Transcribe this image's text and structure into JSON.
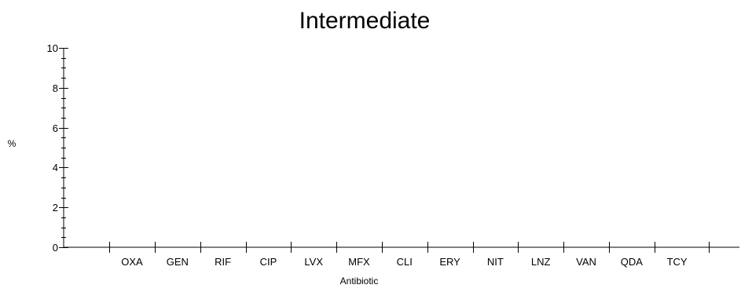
{
  "chart_data": {
    "type": "bar",
    "title": "Intermediate",
    "xlabel": "Antibiotic",
    "ylabel": "%",
    "categories": [
      "OXA",
      "GEN",
      "RIF",
      "CIP",
      "LVX",
      "MFX",
      "CLI",
      "ERY",
      "NIT",
      "LNZ",
      "VAN",
      "QDA",
      "TCY"
    ],
    "values": [
      0,
      0,
      0,
      0,
      0,
      0,
      0,
      0,
      0,
      0,
      0,
      0,
      0
    ],
    "ylim": [
      0,
      10
    ],
    "y_ticks": [
      0,
      2,
      4,
      6,
      8,
      10
    ],
    "y_minor_step": 0.5,
    "grid": false,
    "bar_color": "#000080"
  }
}
